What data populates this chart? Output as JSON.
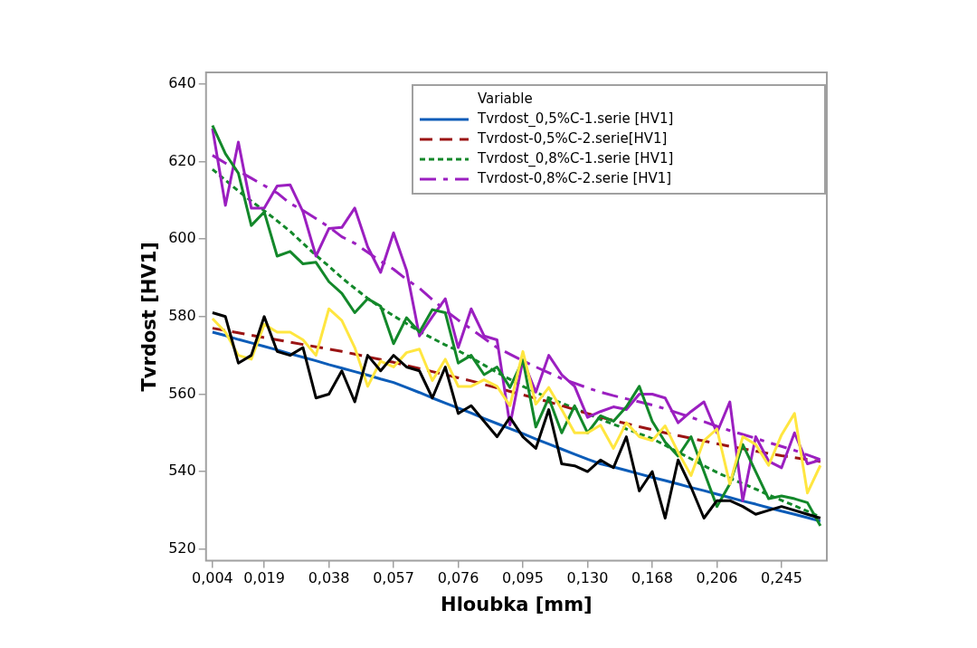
{
  "chart_data": {
    "type": "line",
    "xlabel": "Hloubka [mm]",
    "ylabel": "Tvrdost [HV1]",
    "legend_title": "Variable",
    "legend": "top right",
    "grid": false,
    "marker": "none",
    "categories": [
      "0,004",
      null,
      null,
      null,
      "0,019",
      null,
      null,
      null,
      null,
      "0,038",
      null,
      null,
      null,
      null,
      "0,057",
      null,
      null,
      null,
      null,
      "0,076",
      null,
      null,
      null,
      null,
      "0,095",
      null,
      null,
      null,
      null,
      "0,130",
      null,
      null,
      null,
      null,
      "0,168",
      null,
      null,
      null,
      null,
      "0,206",
      null,
      null,
      null,
      null,
      "0,245",
      null,
      null,
      null
    ],
    "ylim": [
      517,
      643
    ],
    "yticks": [
      520,
      540,
      560,
      580,
      600,
      620,
      640
    ],
    "series": [
      {
        "color": "#000000",
        "line_style": "solid",
        "values": [
          581,
          580,
          568,
          570,
          580,
          571,
          570,
          572,
          559,
          560,
          566,
          558,
          570,
          566,
          570,
          567,
          566,
          559,
          567,
          555,
          557,
          553,
          549,
          554,
          549,
          546,
          556,
          542,
          541.5,
          540,
          543,
          541,
          549,
          535,
          540,
          528,
          543,
          536,
          528,
          532.5,
          532.5,
          531,
          529,
          530,
          531,
          530,
          529,
          528
        ]
      },
      {
        "color": "#ffe640",
        "line_style": "solid",
        "values": [
          579.5,
          576,
          570,
          569,
          578,
          576,
          576,
          574,
          570,
          582,
          579,
          572,
          562,
          568.5,
          567,
          570.7,
          571.6,
          563.5,
          569,
          562,
          562,
          563.7,
          562,
          557,
          571,
          557.4,
          561.7,
          556,
          550,
          550,
          552,
          546,
          552.6,
          549,
          548,
          551.8,
          545,
          539,
          548,
          551,
          536.8,
          549,
          547,
          541.6,
          549.5,
          555,
          534.5,
          541.6
        ]
      },
      {
        "color": "#13882a",
        "line_style": "solid",
        "values": [
          629.3,
          622,
          617,
          603.5,
          607,
          595.6,
          596.8,
          593.6,
          594,
          589,
          586,
          581,
          584.6,
          582.7,
          573,
          579.7,
          576,
          581.8,
          581,
          568,
          570,
          565,
          567,
          561.7,
          568.8,
          551.5,
          559,
          550,
          557,
          550,
          554.4,
          553,
          556.7,
          562,
          553,
          547.6,
          544,
          549,
          540,
          531,
          536.8,
          547,
          540,
          533,
          533.7,
          533,
          532,
          526
        ]
      },
      {
        "color": "#9b1fc0",
        "line_style": "solid",
        "values": [
          628.5,
          608.7,
          625,
          608,
          608,
          613.7,
          614,
          607,
          595.6,
          602.7,
          603,
          608,
          598,
          591.4,
          601.6,
          592,
          575,
          580,
          584.6,
          572,
          582,
          575,
          574,
          552,
          568.8,
          560.5,
          570,
          565,
          562,
          554,
          555.5,
          556.7,
          556,
          560,
          560,
          559,
          552.6,
          555.5,
          558,
          550,
          558,
          532.5,
          549,
          542.7,
          541,
          550,
          542,
          543
        ]
      },
      {
        "name": "Tvrdost_0,5%C-1.serie [HV1]",
        "color": "#0c5cb8",
        "line_style": "solid",
        "values": [
          576,
          575.1,
          574.1,
          573.2,
          572.3,
          571.4,
          570.4,
          569.5,
          568.6,
          567.6,
          566.7,
          565.8,
          564.9,
          563.9,
          563,
          561.7,
          560.4,
          559,
          557.7,
          556.4,
          555.1,
          553.7,
          552.4,
          551.1,
          549.8,
          548.4,
          547.1,
          545.8,
          544.5,
          543.2,
          542,
          541.2,
          540.3,
          539.4,
          538.5,
          537.7,
          536.8,
          535.9,
          535.1,
          534.2,
          533.3,
          532.4,
          531.6,
          530.7,
          529.8,
          529,
          528.1,
          527.2
        ]
      },
      {
        "name": "Tvrdost-0,5%C-2.serie[HV1]",
        "color": "#9b1414",
        "line_style": "dashed",
        "values": [
          577,
          576.4,
          575.8,
          575.2,
          574.6,
          574,
          573.4,
          572.8,
          572.2,
          571.6,
          571,
          570.3,
          569.6,
          568.9,
          568.2,
          567.4,
          566.6,
          565.8,
          565,
          564.2,
          563.4,
          562.5,
          561.6,
          560.7,
          559.8,
          558.9,
          558,
          557,
          556,
          555,
          554,
          553.2,
          552.4,
          551.6,
          550.8,
          550,
          549.3,
          548.6,
          547.9,
          547.2,
          546.5,
          545.9,
          545.3,
          544.7,
          544.1,
          543.6,
          543.1,
          542.6
        ]
      },
      {
        "name": "Tvrdost_0,8%C-1.serie [HV1]",
        "color": "#13882a",
        "line_style": "dotted",
        "values": [
          618,
          615.2,
          612.4,
          609.8,
          607.3,
          604.7,
          602,
          598.9,
          595.8,
          593,
          590,
          587.3,
          584.7,
          582.3,
          580.2,
          578.2,
          576.2,
          574.4,
          572.7,
          571.2,
          569.4,
          567.5,
          565.6,
          563.8,
          562,
          560.5,
          559,
          557.7,
          556.3,
          555,
          553.5,
          552.2,
          551,
          549.8,
          548.5,
          546.8,
          545,
          543.3,
          541.5,
          539.8,
          538.3,
          536.9,
          535.5,
          534,
          532.6,
          531.2,
          529.8,
          528.3
        ]
      },
      {
        "name": "Tvrdost-0,8%C-2.serie [HV1]",
        "color": "#9b1fc0",
        "line_style": "dashdot",
        "values": [
          621.6,
          619.6,
          617.6,
          615.7,
          613.8,
          611.9,
          609.2,
          607.4,
          605.3,
          603.1,
          600.6,
          598.9,
          596.6,
          594.3,
          592.2,
          589.6,
          587.3,
          584.4,
          581.6,
          579.1,
          576.8,
          574.4,
          572,
          570.3,
          568.6,
          567,
          565.5,
          564,
          562.8,
          561.6,
          560.5,
          559.6,
          558.8,
          558,
          557.2,
          556.2,
          555.1,
          554,
          552.9,
          551.7,
          550.6,
          549.6,
          548.6,
          547.5,
          546.5,
          545.5,
          544.3,
          543.1
        ]
      }
    ]
  }
}
